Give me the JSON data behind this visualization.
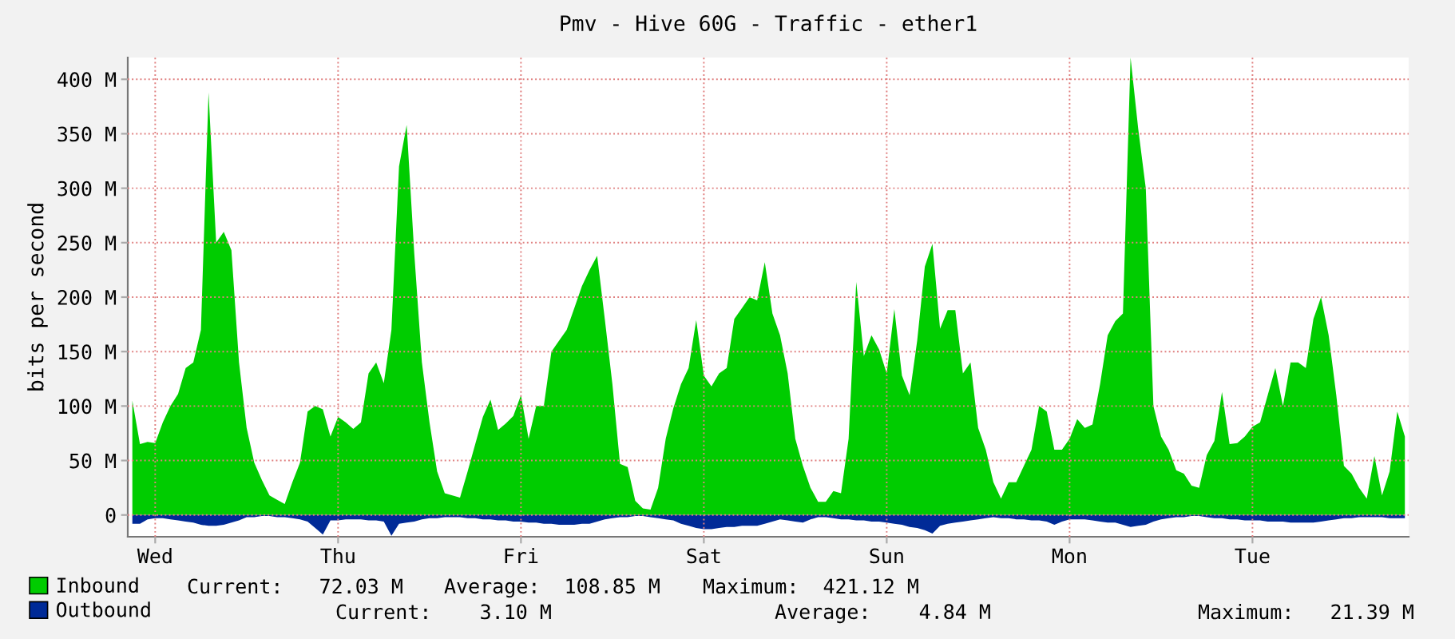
{
  "chart_data": {
    "type": "area",
    "title": "Pmv - Hive 60G - Traffic - ether1",
    "ylabel": "bits per second",
    "categories": [
      null,
      null,
      null,
      "Wed",
      null,
      null,
      null,
      null,
      null,
      null,
      null,
      null,
      null,
      null,
      null,
      null,
      null,
      null,
      null,
      null,
      null,
      null,
      null,
      null,
      null,
      null,
      null,
      "Thu",
      null,
      null,
      null,
      null,
      null,
      null,
      null,
      null,
      null,
      null,
      null,
      null,
      null,
      null,
      null,
      null,
      null,
      null,
      null,
      null,
      null,
      null,
      null,
      "Fri",
      null,
      null,
      null,
      null,
      null,
      null,
      null,
      null,
      null,
      null,
      null,
      null,
      null,
      null,
      null,
      null,
      null,
      null,
      null,
      null,
      null,
      null,
      null,
      "Sat",
      null,
      null,
      null,
      null,
      null,
      null,
      null,
      null,
      null,
      null,
      null,
      null,
      null,
      null,
      null,
      null,
      null,
      null,
      null,
      null,
      null,
      null,
      null,
      "Sun",
      null,
      null,
      null,
      null,
      null,
      null,
      null,
      null,
      null,
      null,
      null,
      null,
      null,
      null,
      null,
      null,
      null,
      null,
      null,
      null,
      null,
      null,
      null,
      "Mon",
      null,
      null,
      null,
      null,
      null,
      null,
      null,
      null,
      null,
      null,
      null,
      null,
      null,
      null,
      null,
      null,
      null,
      null,
      null,
      null,
      null,
      null,
      null,
      "Tue",
      null,
      null,
      null,
      null,
      null,
      null,
      null,
      null,
      null,
      null,
      null,
      null,
      null,
      null,
      null,
      null,
      null,
      null,
      null,
      null
    ],
    "ylim": [
      -20,
      420
    ],
    "yticks": [
      {
        "value": 0,
        "label": "0"
      },
      {
        "value": 50,
        "label": "50 M"
      },
      {
        "value": 100,
        "label": "100 M"
      },
      {
        "value": 150,
        "label": "150 M"
      },
      {
        "value": 200,
        "label": "200 M"
      },
      {
        "value": 250,
        "label": "250 M"
      },
      {
        "value": 300,
        "label": "300 M"
      },
      {
        "value": 350,
        "label": "350 M"
      },
      {
        "value": 400,
        "label": "400 M"
      }
    ],
    "grid": true,
    "legend": "bottom left",
    "series": [
      {
        "name": "Inbound",
        "color": "#00cc00",
        "values": [
          105,
          65,
          67,
          66,
          85,
          100,
          111,
          135,
          140,
          170,
          388,
          250,
          260,
          243,
          140,
          80,
          48,
          32,
          18,
          14,
          10,
          30,
          48,
          95,
          100,
          97,
          72,
          90,
          85,
          79,
          85,
          130,
          140,
          121,
          170,
          320,
          358,
          240,
          140,
          85,
          40,
          20,
          18,
          16,
          40,
          65,
          90,
          106,
          78,
          84,
          91,
          110,
          70,
          100,
          100,
          150,
          160,
          170,
          190,
          210,
          225,
          238,
          180,
          120,
          47,
          44,
          13,
          6,
          5,
          25,
          70,
          98,
          120,
          135,
          179,
          128,
          118,
          130,
          135,
          180,
          190,
          200,
          197,
          232,
          185,
          165,
          130,
          70,
          45,
          25,
          12,
          12,
          22,
          20,
          70,
          214,
          146,
          165,
          152,
          130,
          189,
          128,
          110,
          160,
          228,
          249,
          171,
          188,
          188,
          130,
          140,
          80,
          60,
          30,
          15,
          30,
          30,
          45,
          60,
          100,
          95,
          60,
          60,
          70,
          88,
          80,
          83,
          120,
          165,
          178,
          185,
          420,
          355,
          300,
          100,
          72,
          60,
          41,
          38,
          27,
          25,
          55,
          68,
          113,
          65,
          66,
          72,
          81,
          85,
          110,
          135,
          100,
          140,
          140,
          135,
          180,
          200,
          165,
          110,
          45,
          38,
          25,
          15,
          54,
          18,
          40,
          95,
          72
        ]
      },
      {
        "name": "Outbound",
        "color": "#002a97",
        "values": [
          -8,
          -8,
          -4,
          -3,
          -3,
          -4,
          -5,
          -6,
          -7,
          -9,
          -10,
          -10,
          -9,
          -7,
          -5,
          -2,
          -2,
          -1,
          -1,
          -2,
          -2,
          -3,
          -4,
          -6,
          -12,
          -18,
          -5,
          -5,
          -4,
          -4,
          -4,
          -5,
          -5,
          -6,
          -19,
          -8,
          -7,
          -6,
          -4,
          -3,
          -3,
          -2,
          -2,
          -2,
          -3,
          -3,
          -4,
          -4,
          -5,
          -5,
          -6,
          -6,
          -7,
          -7,
          -8,
          -8,
          -9,
          -9,
          -9,
          -8,
          -8,
          -6,
          -4,
          -3,
          -2,
          -2,
          -1,
          -1,
          -2,
          -3,
          -4,
          -5,
          -8,
          -10,
          -12,
          -13,
          -13,
          -12,
          -11,
          -11,
          -10,
          -10,
          -10,
          -8,
          -6,
          -4,
          -5,
          -6,
          -7,
          -4,
          -2,
          -2,
          -3,
          -4,
          -4,
          -5,
          -5,
          -6,
          -6,
          -7,
          -8,
          -9,
          -11,
          -12,
          -14,
          -17,
          -10,
          -8,
          -7,
          -6,
          -5,
          -4,
          -3,
          -2,
          -3,
          -3,
          -4,
          -4,
          -5,
          -5,
          -6,
          -9,
          -6,
          -4,
          -4,
          -4,
          -5,
          -6,
          -7,
          -7,
          -9,
          -11,
          -10,
          -9,
          -6,
          -4,
          -3,
          -2,
          -2,
          -1,
          -1,
          -2,
          -3,
          -3,
          -4,
          -4,
          -5,
          -5,
          -5,
          -6,
          -6,
          -6,
          -7,
          -7,
          -7,
          -7,
          -6,
          -5,
          -4,
          -3,
          -3,
          -2,
          -2,
          -2,
          -2,
          -3,
          -3,
          -3
        ]
      }
    ],
    "annotations": [
      "Current:   72.03 M",
      "Average:  108.85 M",
      "Maximum:  421.12 M",
      "Current:    3.10 M",
      "Average:    4.84 M",
      "Maximum:   21.39 M"
    ]
  }
}
